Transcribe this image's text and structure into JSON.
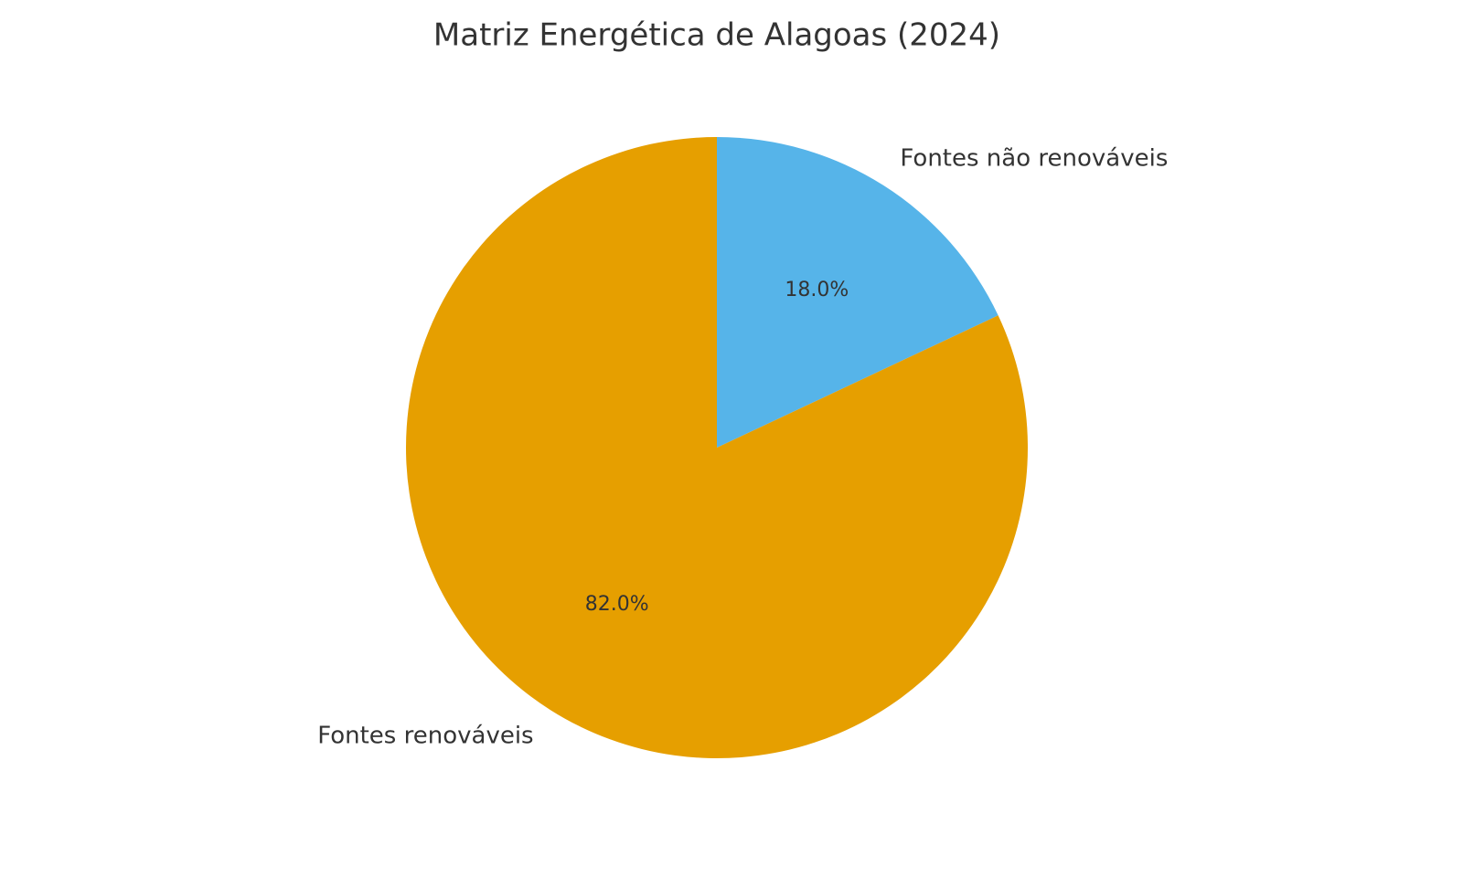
{
  "chart_data": {
    "type": "pie",
    "title": "Matriz Energética de Alagoas (2024)",
    "categories": [
      "Fontes não renováveis",
      "Fontes renováveis"
    ],
    "values": [
      18,
      82
    ],
    "value_labels": [
      "18.0%",
      "82.0%"
    ],
    "colors": [
      "#56b4e9",
      "#e69f00"
    ]
  }
}
